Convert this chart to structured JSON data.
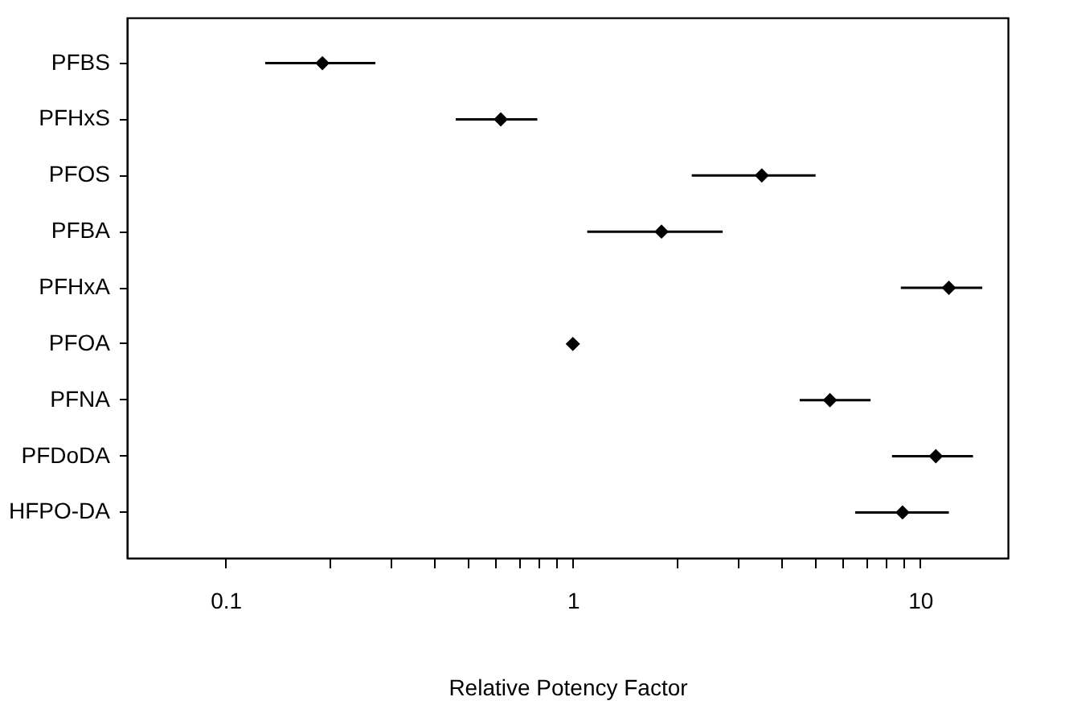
{
  "chart_data": {
    "type": "scatter",
    "orientation": "horizontal",
    "xlabel": "Relative Potency Factor",
    "log": "x",
    "marker": "diamond",
    "grid": false,
    "categories": [
      "PFBS",
      "PFHxS",
      "PFOS",
      "PFBA",
      "PFHxA",
      "PFOA",
      "PFNA",
      "PFDoDA",
      "HFPO-DA"
    ],
    "series": [
      {
        "color": "#000000",
        "values": [
          0.19,
          0.62,
          3.5,
          1.8,
          12.1,
          1,
          5.5,
          11.1,
          8.9
        ],
        "errors": [
          [
            0.13,
            0.27
          ],
          [
            0.46,
            0.79
          ],
          [
            2.2,
            5.0
          ],
          [
            1.1,
            2.7
          ],
          [
            8.8,
            15.1
          ],
          null,
          [
            4.5,
            7.2
          ],
          [
            8.3,
            14.2
          ],
          [
            6.5,
            12.1
          ]
        ]
      }
    ],
    "xlim": [
      0.052,
      17.9
    ],
    "xticks": [
      0.1,
      {
        "value": 0.2,
        "label": null
      },
      {
        "value": 0.3,
        "label": null
      },
      {
        "value": 0.4,
        "label": null
      },
      {
        "value": 0.5,
        "label": null
      },
      {
        "value": 0.6,
        "label": null
      },
      {
        "value": 0.7,
        "label": null
      },
      {
        "value": 0.8,
        "label": null
      },
      {
        "value": 0.9,
        "label": null
      },
      1,
      {
        "value": 2,
        "label": null
      },
      {
        "value": 3,
        "label": null
      },
      {
        "value": 4,
        "label": null
      },
      {
        "value": 5,
        "label": null
      },
      {
        "value": 6,
        "label": null
      },
      {
        "value": 7,
        "label": null
      },
      {
        "value": 8,
        "label": null
      },
      {
        "value": 9,
        "label": null
      },
      10
    ]
  }
}
